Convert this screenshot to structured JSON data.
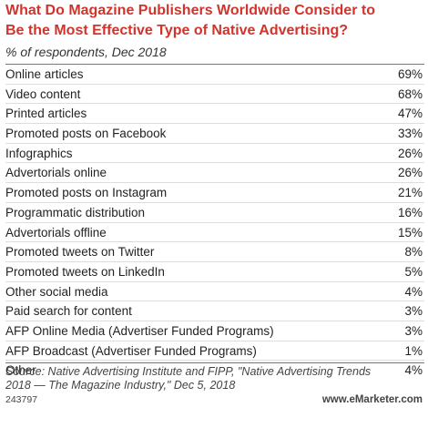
{
  "header": {
    "title": [
      "What Do Magazine Publishers Worldwide Consider to",
      "Be the Most Effective Type of Native Advertising?"
    ],
    "subtitle": "% of respondents, Dec 2018"
  },
  "table": {
    "rows": [
      [
        "Online articles",
        "69%"
      ],
      [
        "Video content",
        "68%"
      ],
      [
        "Printed articles",
        "47%"
      ],
      [
        "Promoted posts on Facebook",
        "33%"
      ],
      [
        "Infographics",
        "26%"
      ],
      [
        "Advertorials online",
        "26%"
      ],
      [
        "Promoted posts on Instagram",
        "21%"
      ],
      [
        "Programmatic distribution",
        "16%"
      ],
      [
        "Advertorials offline",
        "15%"
      ],
      [
        "Promoted tweets on Twitter",
        "8%"
      ],
      [
        "Promoted tweets on LinkedIn",
        "5%"
      ],
      [
        "Other social media",
        "4%"
      ],
      [
        "Paid search for content",
        "3%"
      ],
      [
        "AFP Online Media (Advertiser Funded Programs)",
        "3%"
      ],
      [
        "AFP Broadcast (Advertiser Funded Programs)",
        "1%"
      ],
      [
        "Other",
        "4%"
      ]
    ]
  },
  "footer": {
    "source": [
      "Source: Native Advertising Institute and FIPP, \"Native Advertising Trends",
      "2018 — The Magazine Industry,\" Dec 5, 2018"
    ],
    "id": "243797",
    "site": "www.eMarketer.com"
  }
}
